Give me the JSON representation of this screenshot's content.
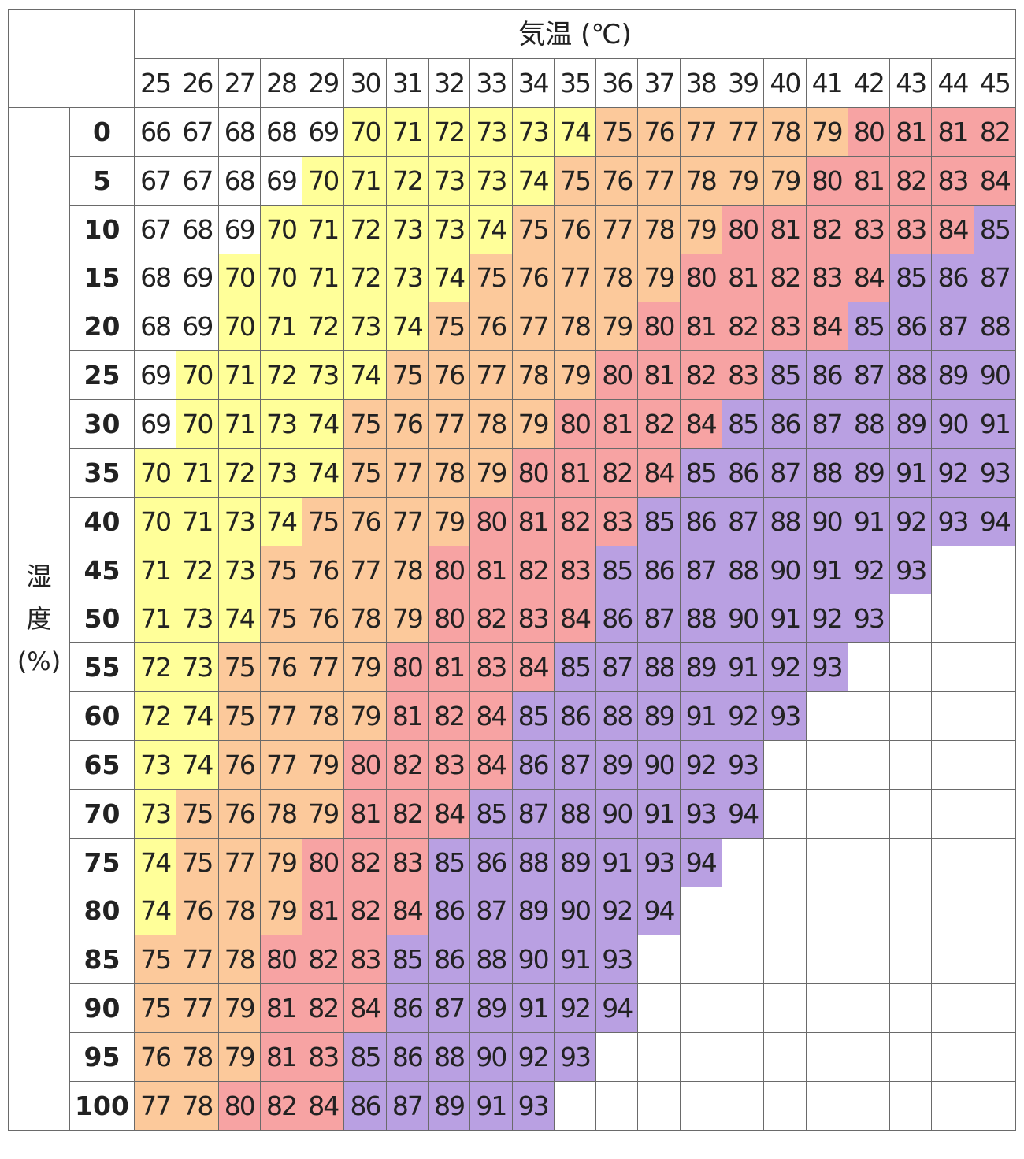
{
  "table": {
    "title": "気温 (℃)",
    "columns": [
      "25",
      "26",
      "27",
      "28",
      "29",
      "30",
      "31",
      "32",
      "33",
      "34",
      "35",
      "36",
      "37",
      "38",
      "39",
      "40",
      "41",
      "42",
      "43",
      "44",
      "45"
    ],
    "row_label": [
      "湿",
      "度",
      "(%)"
    ],
    "rows": [
      {
        "label": "0",
        "values": [
          66,
          67,
          68,
          68,
          69,
          70,
          71,
          72,
          73,
          73,
          74,
          75,
          76,
          77,
          77,
          78,
          79,
          80,
          81,
          81,
          82
        ]
      },
      {
        "label": "5",
        "values": [
          67,
          67,
          68,
          69,
          70,
          71,
          72,
          73,
          73,
          74,
          75,
          76,
          77,
          78,
          79,
          79,
          80,
          81,
          82,
          83,
          84
        ]
      },
      {
        "label": "10",
        "values": [
          67,
          68,
          69,
          70,
          71,
          72,
          73,
          73,
          74,
          75,
          76,
          77,
          78,
          79,
          80,
          81,
          82,
          83,
          83,
          84,
          85
        ]
      },
      {
        "label": "15",
        "values": [
          68,
          69,
          70,
          70,
          71,
          72,
          73,
          74,
          75,
          76,
          77,
          78,
          79,
          80,
          81,
          82,
          83,
          84,
          85,
          86,
          87
        ]
      },
      {
        "label": "20",
        "values": [
          68,
          69,
          70,
          71,
          72,
          73,
          74,
          75,
          76,
          77,
          78,
          79,
          80,
          81,
          82,
          83,
          84,
          85,
          86,
          87,
          88
        ]
      },
      {
        "label": "25",
        "values": [
          69,
          70,
          71,
          72,
          73,
          74,
          75,
          76,
          77,
          78,
          79,
          80,
          81,
          82,
          83,
          85,
          86,
          87,
          88,
          89,
          90
        ]
      },
      {
        "label": "30",
        "values": [
          69,
          70,
          71,
          73,
          74,
          75,
          76,
          77,
          78,
          79,
          80,
          81,
          82,
          84,
          85,
          86,
          87,
          88,
          89,
          90,
          91
        ]
      },
      {
        "label": "35",
        "values": [
          70,
          71,
          72,
          73,
          74,
          75,
          77,
          78,
          79,
          80,
          81,
          82,
          84,
          85,
          86,
          87,
          88,
          89,
          91,
          92,
          93
        ]
      },
      {
        "label": "40",
        "values": [
          70,
          71,
          73,
          74,
          75,
          76,
          77,
          79,
          80,
          81,
          82,
          83,
          85,
          86,
          87,
          88,
          90,
          91,
          92,
          93,
          94
        ]
      },
      {
        "label": "45",
        "values": [
          71,
          72,
          73,
          75,
          76,
          77,
          78,
          80,
          81,
          82,
          83,
          85,
          86,
          87,
          88,
          90,
          91,
          92,
          93,
          null,
          null
        ]
      },
      {
        "label": "50",
        "values": [
          71,
          73,
          74,
          75,
          76,
          78,
          79,
          80,
          82,
          83,
          84,
          86,
          87,
          88,
          90,
          91,
          92,
          93,
          null,
          null,
          null
        ]
      },
      {
        "label": "55",
        "values": [
          72,
          73,
          75,
          76,
          77,
          79,
          80,
          81,
          83,
          84,
          85,
          87,
          88,
          89,
          91,
          92,
          93,
          null,
          null,
          null,
          null
        ]
      },
      {
        "label": "60",
        "values": [
          72,
          74,
          75,
          77,
          78,
          79,
          81,
          82,
          84,
          85,
          86,
          88,
          89,
          91,
          92,
          93,
          null,
          null,
          null,
          null,
          null
        ]
      },
      {
        "label": "65",
        "values": [
          73,
          74,
          76,
          77,
          79,
          80,
          82,
          83,
          84,
          86,
          87,
          89,
          90,
          92,
          93,
          null,
          null,
          null,
          null,
          null,
          null
        ]
      },
      {
        "label": "70",
        "values": [
          73,
          75,
          76,
          78,
          79,
          81,
          82,
          84,
          85,
          87,
          88,
          90,
          91,
          93,
          94,
          null,
          null,
          null,
          null,
          null,
          null
        ]
      },
      {
        "label": "75",
        "values": [
          74,
          75,
          77,
          79,
          80,
          82,
          83,
          85,
          86,
          88,
          89,
          91,
          93,
          94,
          null,
          null,
          null,
          null,
          null,
          null,
          null
        ]
      },
      {
        "label": "80",
        "values": [
          74,
          76,
          78,
          79,
          81,
          82,
          84,
          86,
          87,
          89,
          90,
          92,
          94,
          null,
          null,
          null,
          null,
          null,
          null,
          null,
          null
        ]
      },
      {
        "label": "85",
        "values": [
          75,
          77,
          78,
          80,
          82,
          83,
          85,
          86,
          88,
          90,
          91,
          93,
          null,
          null,
          null,
          null,
          null,
          null,
          null,
          null,
          null
        ]
      },
      {
        "label": "90",
        "values": [
          75,
          77,
          79,
          81,
          82,
          84,
          86,
          87,
          89,
          91,
          92,
          94,
          null,
          null,
          null,
          null,
          null,
          null,
          null,
          null,
          null
        ]
      },
      {
        "label": "95",
        "values": [
          76,
          78,
          79,
          81,
          83,
          85,
          86,
          88,
          90,
          92,
          93,
          null,
          null,
          null,
          null,
          null,
          null,
          null,
          null,
          null,
          null
        ]
      },
      {
        "label": "100",
        "values": [
          77,
          78,
          80,
          82,
          84,
          86,
          87,
          89,
          91,
          93,
          null,
          null,
          null,
          null,
          null,
          null,
          null,
          null,
          null,
          null,
          null
        ]
      }
    ]
  },
  "color_scale": [
    {
      "min": 70,
      "color": "#ffff99"
    },
    {
      "min": 75,
      "color": "#fcc99b"
    },
    {
      "min": 80,
      "color": "#f7a3a3"
    },
    {
      "min": 85,
      "color": "#b9a0e2"
    }
  ]
}
